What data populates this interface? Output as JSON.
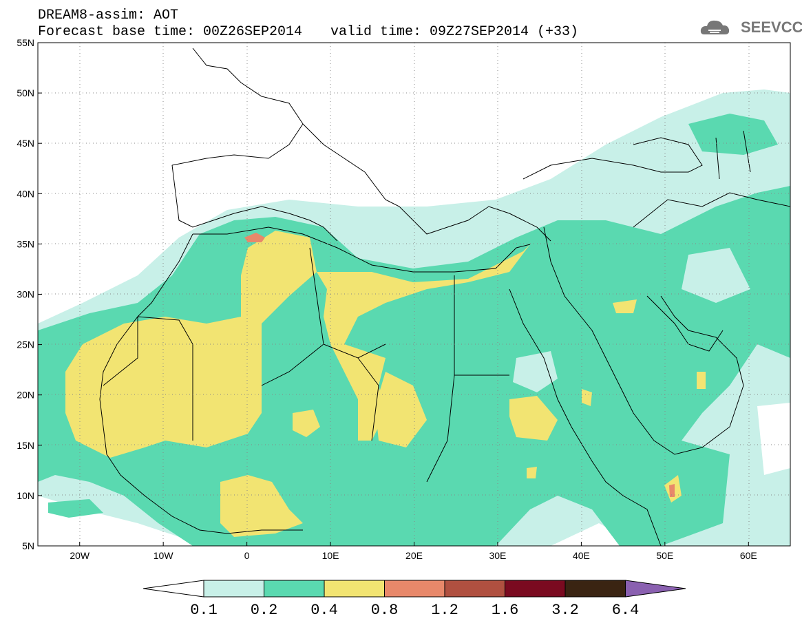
{
  "title": {
    "line1": "DREAM8-assim: AOT",
    "line2": "Forecast base time: 00Z26SEP2014",
    "valid": "valid time: 09Z27SEP2014 (+33)"
  },
  "logo": {
    "text": "SEEVCCC",
    "color": "#777777"
  },
  "map": {
    "lon_range": [
      -25,
      65
    ],
    "lat_range": [
      5,
      55
    ],
    "lat_ticks": [
      "55N",
      "50N",
      "45N",
      "40N",
      "35N",
      "30N",
      "25N",
      "20N",
      "15N",
      "10N",
      "5N"
    ],
    "lon_ticks": [
      "20W",
      "10W",
      "0",
      "10E",
      "20E",
      "30E",
      "40E",
      "50E",
      "60E"
    ],
    "grid": "dotted",
    "variable": "Aerosol optical thickness"
  },
  "colorbar": {
    "labels": [
      "0.1",
      "0.2",
      "0.4",
      "0.8",
      "1.2",
      "1.6",
      "3.2",
      "6.4"
    ],
    "colors": [
      "#c8f0e8",
      "#5ad9b0",
      "#f2e472",
      "#e8886a",
      "#b05040",
      "#7a0a20",
      "#3a2412"
    ],
    "over_color": "#8a60b0",
    "under_color": "#ffffff"
  }
}
